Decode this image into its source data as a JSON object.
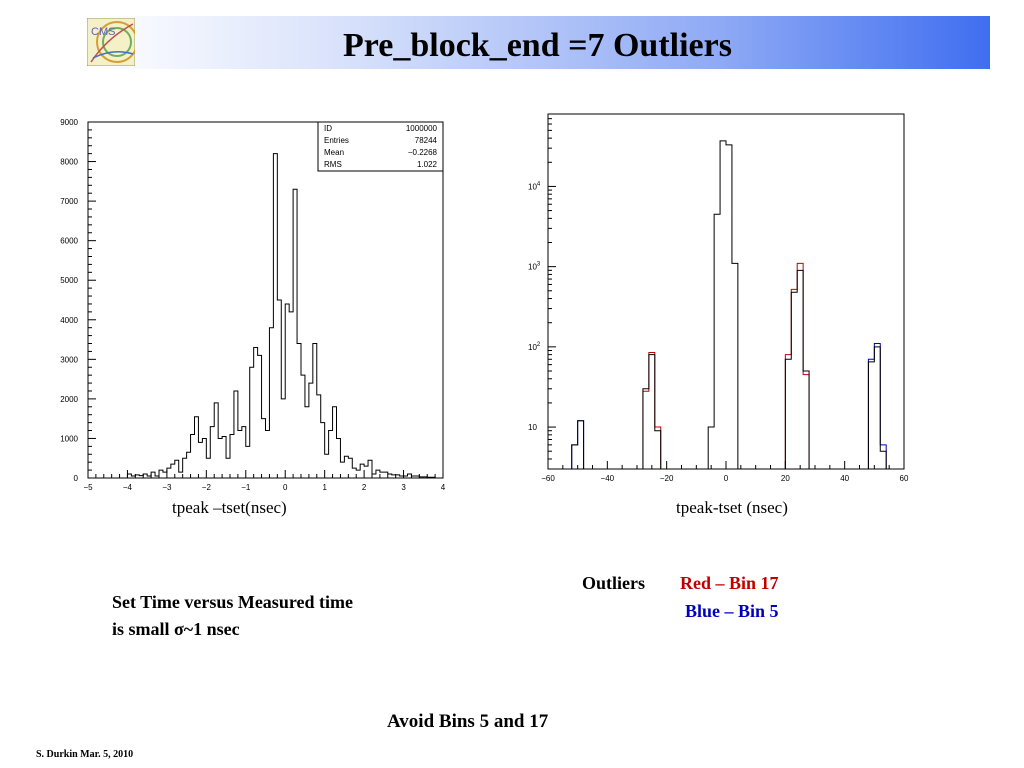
{
  "slide": {
    "title": "Pre_block_end =7 Outliers",
    "logo_text": "CMS",
    "left_caption": "tpeak –tset(nsec)",
    "right_caption": "tpeak-tset (nsec)",
    "note_line1": "Set Time versus Measured time",
    "note_line2": "is small σ~1 nsec",
    "outliers_label": "Outliers",
    "outliers_red": "Red – Bin 17",
    "outliers_blue": "Blue – Bin 5",
    "avoid": "Avoid Bins 5 and 17",
    "footer": "S. Durkin Mar. 5, 2010"
  },
  "colors": {
    "red": "#c00000",
    "blue": "#0000c0",
    "hist_line": "#000000"
  },
  "chart_data": [
    {
      "type": "histogram",
      "xlim": [
        -5,
        4
      ],
      "ylim": [
        0,
        9000
      ],
      "xticks": [
        "−5",
        "−4",
        "−3",
        "−2",
        "−1",
        "0",
        "1",
        "2",
        "3",
        "4"
      ],
      "yticks": [
        "0",
        "1000",
        "2000",
        "3000",
        "4000",
        "5000",
        "6000",
        "7000",
        "8000",
        "9000"
      ],
      "stats": {
        "rows": [
          {
            "label": "ID",
            "value": "1000000"
          },
          {
            "label": "Entries",
            "value": "78244"
          },
          {
            "label": "Mean",
            "value": "−0.2268"
          },
          {
            "label": "RMS",
            "value": "1.022"
          }
        ]
      },
      "bin_width": 0.1,
      "bins": [
        [
          -4.0,
          100
        ],
        [
          -3.9,
          50
        ],
        [
          -3.8,
          80
        ],
        [
          -3.7,
          60
        ],
        [
          -3.6,
          100
        ],
        [
          -3.5,
          50
        ],
        [
          -3.4,
          150
        ],
        [
          -3.3,
          50
        ],
        [
          -3.2,
          200
        ],
        [
          -3.1,
          150
        ],
        [
          -3.0,
          250
        ],
        [
          -2.9,
          350
        ],
        [
          -2.8,
          450
        ],
        [
          -2.7,
          150
        ],
        [
          -2.6,
          500
        ],
        [
          -2.5,
          650
        ],
        [
          -2.4,
          1100
        ],
        [
          -2.3,
          1550
        ],
        [
          -2.2,
          900
        ],
        [
          -2.1,
          1000
        ],
        [
          -2.0,
          500
        ],
        [
          -1.9,
          1300
        ],
        [
          -1.8,
          1900
        ],
        [
          -1.7,
          1000
        ],
        [
          -1.6,
          1050
        ],
        [
          -1.5,
          500
        ],
        [
          -1.4,
          1100
        ],
        [
          -1.3,
          2200
        ],
        [
          -1.2,
          1200
        ],
        [
          -1.1,
          1300
        ],
        [
          -1.0,
          800
        ],
        [
          -0.9,
          2800
        ],
        [
          -0.8,
          3300
        ],
        [
          -0.7,
          3100
        ],
        [
          -0.6,
          1500
        ],
        [
          -0.5,
          1200
        ],
        [
          -0.4,
          3800
        ],
        [
          -0.3,
          8200
        ],
        [
          -0.2,
          4500
        ],
        [
          -0.1,
          2000
        ],
        [
          0.0,
          4400
        ],
        [
          0.1,
          4200
        ],
        [
          0.2,
          7300
        ],
        [
          0.3,
          3400
        ],
        [
          0.4,
          2600
        ],
        [
          0.5,
          1800
        ],
        [
          0.6,
          2400
        ],
        [
          0.7,
          3400
        ],
        [
          0.8,
          2100
        ],
        [
          0.9,
          1400
        ],
        [
          1.0,
          600
        ],
        [
          1.1,
          1200
        ],
        [
          1.2,
          1800
        ],
        [
          1.3,
          1000
        ],
        [
          1.4,
          400
        ],
        [
          1.5,
          550
        ],
        [
          1.6,
          500
        ],
        [
          1.7,
          250
        ],
        [
          1.8,
          200
        ],
        [
          1.9,
          350
        ],
        [
          2.0,
          300
        ],
        [
          2.1,
          450
        ],
        [
          2.2,
          100
        ],
        [
          2.3,
          200
        ],
        [
          2.4,
          150
        ],
        [
          2.5,
          150
        ],
        [
          2.6,
          100
        ],
        [
          2.7,
          80
        ],
        [
          2.8,
          80
        ],
        [
          2.9,
          50
        ],
        [
          3.0,
          50
        ],
        [
          3.1,
          100
        ],
        [
          3.2,
          50
        ],
        [
          3.3,
          50
        ],
        [
          3.4,
          30
        ],
        [
          3.5,
          30
        ],
        [
          3.6,
          20
        ],
        [
          3.7,
          20
        ]
      ]
    },
    {
      "type": "histogram",
      "yscale": "log",
      "xlim": [
        -60,
        60
      ],
      "ylim": [
        3,
        80000
      ],
      "xticks": [
        "−60",
        "−40",
        "−20",
        "0",
        "20",
        "40",
        "60"
      ],
      "yticks": [
        {
          "base": "10",
          "exp": ""
        },
        {
          "base": "10",
          "exp": "2"
        },
        {
          "base": "10",
          "exp": "3"
        },
        {
          "base": "10",
          "exp": "4"
        }
      ],
      "bin_width": 2,
      "series": [
        {
          "color_key": "blue",
          "bins": [
            [
              -52,
              6
            ],
            [
              -50,
              12
            ],
            [
              48,
              70
            ],
            [
              50,
              110
            ],
            [
              52,
              6
            ]
          ]
        },
        {
          "color_key": "red",
          "bins": [
            [
              -28,
              28
            ],
            [
              -26,
              85
            ],
            [
              -24,
              10
            ],
            [
              20,
              80
            ],
            [
              22,
              520
            ],
            [
              24,
              1100
            ],
            [
              26,
              45
            ]
          ]
        },
        {
          "color_key": "hist_line",
          "bins": [
            [
              -52,
              6
            ],
            [
              -50,
              12
            ],
            [
              -28,
              30
            ],
            [
              -26,
              80
            ],
            [
              -24,
              9
            ],
            [
              -6,
              10
            ],
            [
              -4,
              4500
            ],
            [
              -2,
              37000
            ],
            [
              0,
              33000
            ],
            [
              2,
              1100
            ],
            [
              20,
              70
            ],
            [
              22,
              480
            ],
            [
              24,
              900
            ],
            [
              26,
              50
            ],
            [
              48,
              65
            ],
            [
              50,
              100
            ],
            [
              52,
              5
            ]
          ]
        }
      ]
    }
  ]
}
